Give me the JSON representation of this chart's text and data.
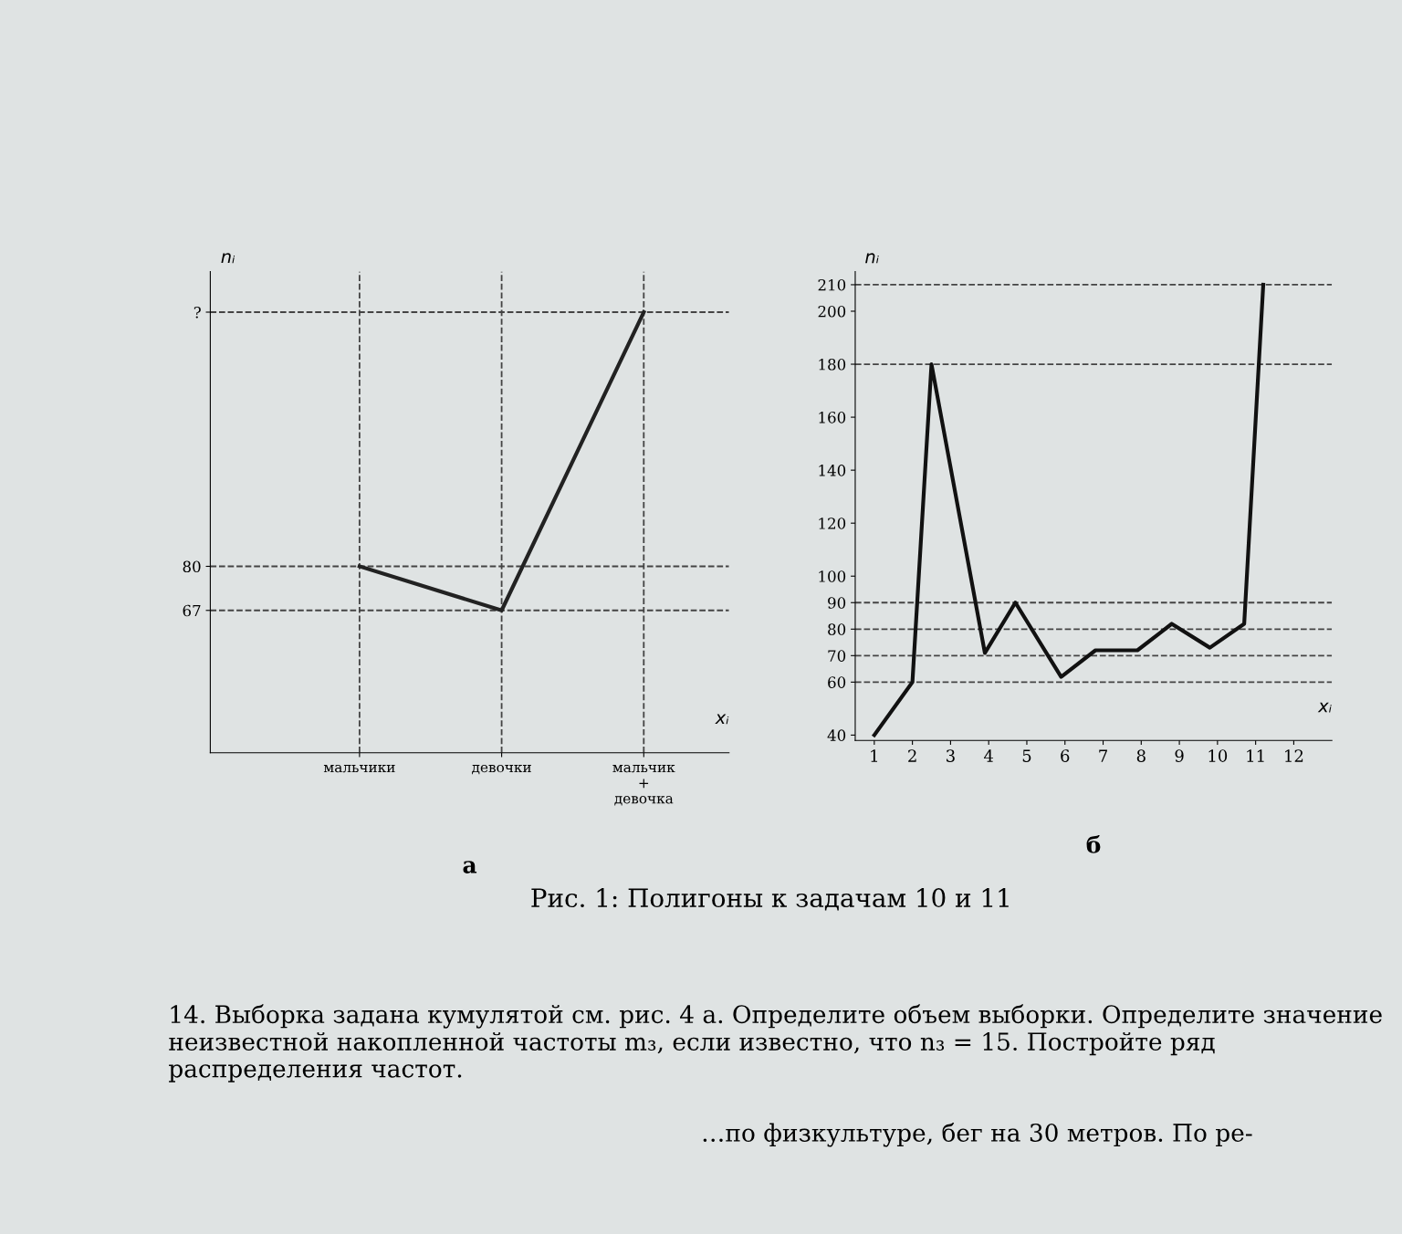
{
  "chart_data": [
    {
      "type": "line",
      "title": "а",
      "xlabel": "xᵢ",
      "ylabel": "nᵢ",
      "categories": [
        "мальчики",
        "девочки",
        "мальчик\n+\nдевочка"
      ],
      "series": [
        {
          "color": "#222222",
          "values": [
            80,
            67,
            155
          ]
        }
      ],
      "ylim": [
        25,
        167
      ],
      "yticks": [
        {
          "value": 155,
          "label": "?"
        },
        80,
        67
      ],
      "ref_lines": [
        {
          "axis": "y",
          "value": 155,
          "line_style": "dashed",
          "color": "#444444"
        },
        {
          "axis": "y",
          "value": 80,
          "line_style": "dashed",
          "color": "#444444"
        },
        {
          "axis": "y",
          "value": 67,
          "line_style": "dashed",
          "color": "#444444"
        },
        {
          "axis": "x",
          "value": "мальчики",
          "line_style": "dashed",
          "color": "#444444"
        },
        {
          "axis": "x",
          "value": "девочки",
          "line_style": "dashed",
          "color": "#444444"
        },
        {
          "axis": "x",
          "value": "мальчик\n+\nдевочка",
          "line_style": "dashed",
          "color": "#444444"
        }
      ],
      "grid": false,
      "marker": "none",
      "line_style": "solid",
      "annotations": [
        "Рис. 1: Полигоны к задачам 10 и 11",
        "14. Выборка задана кумулятой см. рис. 4 а. Определите объем выборки. Определите значение неизвестной накопленной частоты m₃, если известно, что n₃ = 15. Постройте ряд распределения частот.",
        "…по физкультуре, бег на 30 метров. По ре-"
      ]
    },
    {
      "type": "line",
      "title": "б",
      "xlabel": "xᵢ",
      "ylabel": "nᵢ",
      "series": [
        {
          "color": "#111111",
          "x": [
            1,
            2,
            2.5,
            3.9,
            4.7,
            5.9,
            6.8,
            7.9,
            8.8,
            9.8,
            10.7,
            11.2
          ],
          "values": [
            40,
            60,
            180,
            71,
            90,
            62,
            72,
            72,
            82,
            73,
            82,
            210
          ]
        }
      ],
      "xlim": [
        0.5,
        13
      ],
      "xticks": [
        1,
        2,
        3,
        4,
        5,
        6,
        7,
        8,
        9,
        10,
        11,
        12
      ],
      "ylim": [
        38,
        215
      ],
      "yticks": [
        40,
        60,
        70,
        80,
        90,
        100,
        120,
        140,
        160,
        180,
        200,
        210
      ],
      "ref_lines": [
        {
          "axis": "y",
          "value": 210,
          "line_style": "dashed",
          "color": "#444444"
        },
        {
          "axis": "y",
          "value": 180,
          "line_style": "dashed",
          "color": "#444444"
        },
        {
          "axis": "y",
          "value": 90,
          "line_style": "dashed",
          "color": "#444444"
        },
        {
          "axis": "y",
          "value": 80,
          "line_style": "dashed",
          "color": "#444444"
        },
        {
          "axis": "y",
          "value": 70,
          "line_style": "dashed",
          "color": "#444444"
        },
        {
          "axis": "y",
          "value": 60,
          "line_style": "dashed",
          "color": "#444444"
        }
      ],
      "grid": false,
      "marker": "none",
      "line_style": "solid"
    }
  ]
}
